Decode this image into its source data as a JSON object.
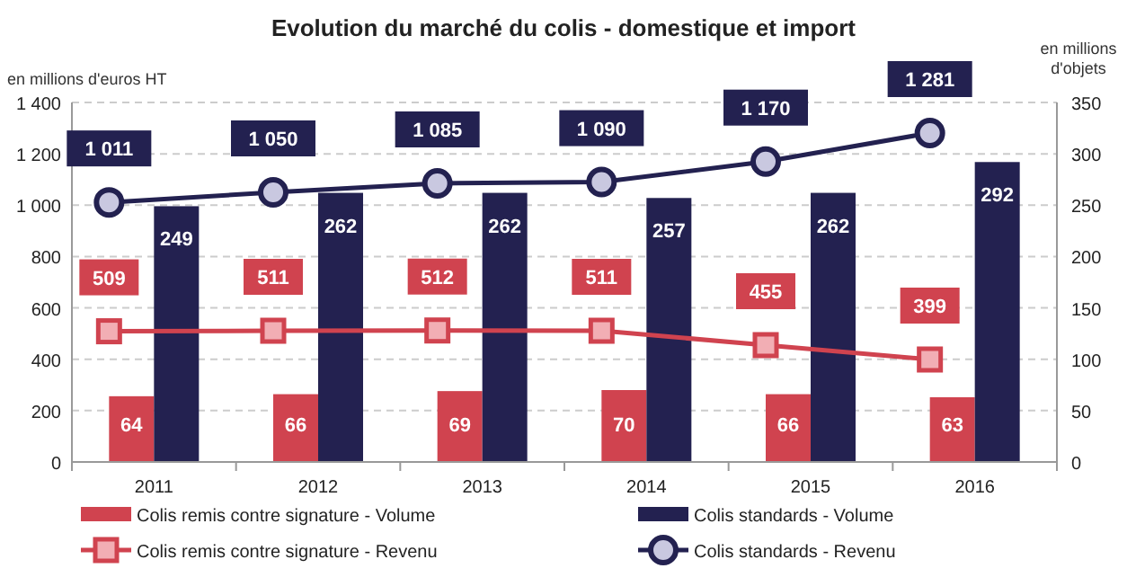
{
  "chart_data": {
    "type": "bar",
    "title": "Evolution du marché du colis - domestique et import",
    "ylabel": "en millions d'euros HT",
    "y2label": "en millions d'objets",
    "categories": [
      "2011",
      "2012",
      "2013",
      "2014",
      "2015",
      "2016"
    ],
    "series": [
      {
        "name": "Colis remis contre signature - Volume",
        "axis": "y2",
        "color": "#d0434f",
        "values": [
          64,
          66,
          69,
          70,
          66,
          63
        ],
        "value_labels": [
          "64",
          "66",
          "69",
          "70",
          "66",
          "63"
        ]
      },
      {
        "name": "Colis standards - Volume",
        "axis": "y2",
        "color": "#232150",
        "values": [
          249,
          262,
          262,
          257,
          262,
          292
        ],
        "value_labels": [
          "249",
          "262",
          "262",
          "257",
          "262",
          "292"
        ]
      },
      {
        "name": "Colis remis contre signature - Revenu",
        "type": "line",
        "color": "#d0434f",
        "marker": "square",
        "values": [
          509,
          511,
          512,
          511,
          455,
          399
        ],
        "value_labels": [
          "509",
          "511",
          "512",
          "511",
          "455",
          "399"
        ]
      },
      {
        "name": "Colis standards - Revenu",
        "type": "line",
        "color": "#232150",
        "marker": "circle",
        "values": [
          1011,
          1050,
          1085,
          1090,
          1170,
          1281
        ],
        "value_labels": [
          "1 011",
          "1 050",
          "1 085",
          "1 090",
          "1 170",
          "1 281"
        ]
      }
    ],
    "ylim": [
      0,
      1400
    ],
    "yticks": [
      0,
      200,
      400,
      600,
      800,
      {
        "value": 1000,
        "label": "1 000"
      },
      {
        "value": 1200,
        "label": "1 200"
      },
      {
        "value": 1400,
        "label": "1 400"
      }
    ],
    "y2lim": [
      0,
      350
    ],
    "y2ticks": [
      0,
      50,
      100,
      150,
      200,
      250,
      300,
      350
    ],
    "grid": "y",
    "legend": "bottom"
  }
}
